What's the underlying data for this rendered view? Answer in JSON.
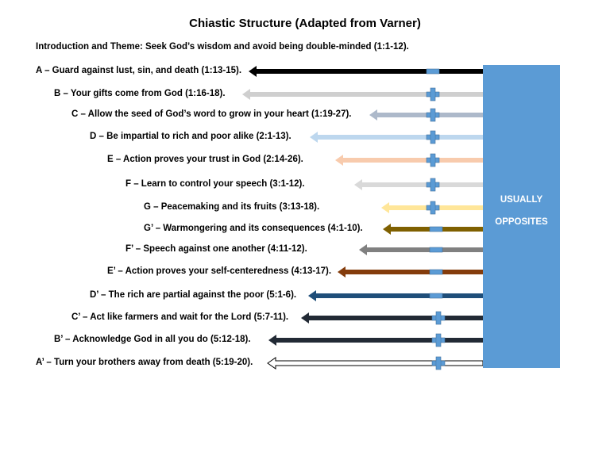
{
  "title": "Chiastic Structure (Adapted from Varner)",
  "intro": "Introduction and Theme: Seek God’s wisdom and avoid being double-minded (1:1-12).",
  "side_box": {
    "line1": "USUALLY",
    "line2": "OPPOSITES",
    "color": "#5b9bd5"
  },
  "rows": [
    {
      "label": "A – Guard against lust, sin, and death (1:13-15).",
      "color": "#000000",
      "marker": "minus",
      "outline": false
    },
    {
      "label": "B – Your gifts come from God (1:16-18).",
      "color": "#cfcfcf",
      "marker": "plus",
      "outline": false
    },
    {
      "label": "C – Allow the seed of God’s word to grow in your heart (1:19-27).",
      "color": "#adb9ca",
      "marker": "plus",
      "outline": false
    },
    {
      "label": "D – Be impartial to rich and poor alike (2:1-13).",
      "color": "#bdd7ee",
      "marker": "plus",
      "outline": false
    },
    {
      "label": "E – Action proves your trust in God (2:14-26).",
      "color": "#f8cbad",
      "marker": "plus",
      "outline": false
    },
    {
      "label": "F – Learn to control your speech (3:1-12).",
      "color": "#d9d9d9",
      "marker": "plus",
      "outline": false
    },
    {
      "label": "G – Peacemaking and its fruits (3:13-18).",
      "color": "#ffe699",
      "marker": "plus",
      "outline": false
    },
    {
      "label": "G’ – Warmongering and its consequences (4:1-10).",
      "color": "#7f6000",
      "marker": "minus",
      "outline": false
    },
    {
      "label": "F’ – Speech against one another (4:11-12).",
      "color": "#808080",
      "marker": "minus",
      "outline": false
    },
    {
      "label": "E’ – Action proves your self-centeredness (4:13-17).",
      "color": "#843c0c",
      "marker": "minus",
      "outline": false
    },
    {
      "label": "D’ – The rich are partial against the poor (5:1-6).",
      "color": "#1f4e79",
      "marker": "minus",
      "outline": false
    },
    {
      "label": "C’ – Act like farmers and wait for the Lord (5:7-11).",
      "color": "#222a35",
      "marker": "plus",
      "outline": false
    },
    {
      "label": "B’ – Acknowledge God in all you do (5:12-18).",
      "color": "#222a35",
      "marker": "plus",
      "outline": false
    },
    {
      "label": "A’ – Turn your brothers away from death (5:19-20).",
      "color": "#000000",
      "marker": "plus",
      "outline": true
    }
  ],
  "marker_color": "#5b9bd5"
}
